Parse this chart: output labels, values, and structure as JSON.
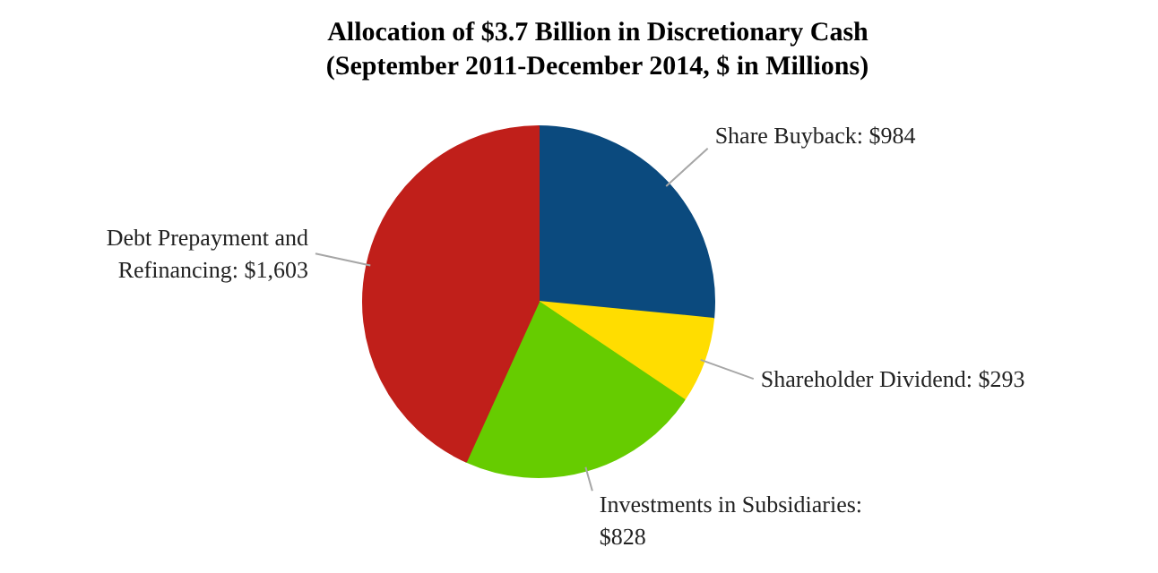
{
  "chart_data": {
    "type": "pie",
    "title": "Allocation of $3.7 Billion in Discretionary Cash\n(September 2011-December 2014, $ in Millions)",
    "categories": [
      "Share Buyback: $984",
      "Shareholder Dividend: $293",
      "Investments in Subsidiaries:\n$828",
      "Debt Prepayment and\nRefinancing: $1,603"
    ],
    "values": [
      984,
      293,
      828,
      1603
    ],
    "colors": [
      "#0b4a7e",
      "#ffdd00",
      "#66cc00",
      "#c01f1a"
    ]
  }
}
